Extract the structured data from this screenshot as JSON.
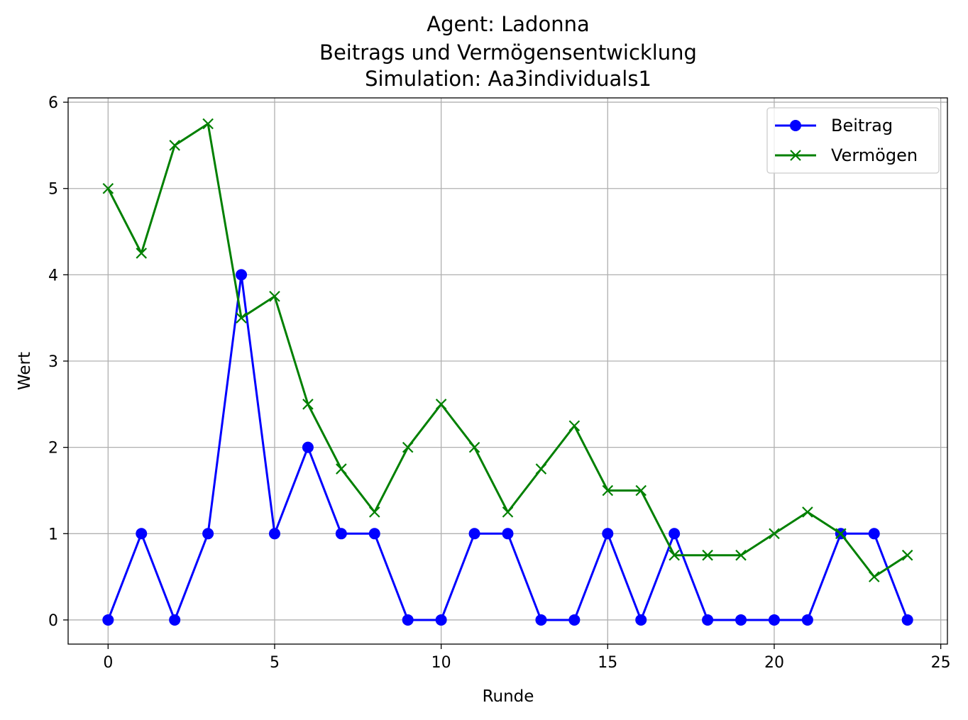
{
  "chart_data": {
    "type": "line",
    "title": "Agent: Ladonna",
    "subtitle_lines": [
      "Beitrags und Vermögensentwicklung",
      "Simulation: Aa3individuals1"
    ],
    "xlabel": "Runde",
    "ylabel": "Wert",
    "xlim": [
      -1.2,
      25.2
    ],
    "ylim": [
      -0.28,
      6.05
    ],
    "xticks": [
      0,
      5,
      10,
      15,
      20,
      25
    ],
    "yticks": [
      0,
      1,
      2,
      3,
      4,
      5,
      6
    ],
    "grid": true,
    "legend_position": "top-right",
    "x": [
      0,
      1,
      2,
      3,
      4,
      5,
      6,
      7,
      8,
      9,
      10,
      11,
      12,
      13,
      14,
      15,
      16,
      17,
      18,
      19,
      20,
      21,
      22,
      23,
      24
    ],
    "series": [
      {
        "name": "Beitrag",
        "color": "#0000ff",
        "marker": "circle",
        "values": [
          0,
          1,
          0,
          1,
          4,
          1,
          2,
          1,
          1,
          0,
          0,
          1,
          1,
          0,
          0,
          1,
          0,
          1,
          0,
          0,
          0,
          0,
          1,
          1,
          0
        ]
      },
      {
        "name": "Vermögen",
        "color": "#008000",
        "marker": "x",
        "values": [
          5,
          4.25,
          5.5,
          5.75,
          3.5,
          3.75,
          2.5,
          1.75,
          1.25,
          2,
          2.5,
          2,
          1.25,
          1.75,
          2.25,
          1.5,
          1.5,
          0.75,
          0.75,
          0.75,
          1,
          1.25,
          1,
          0.5,
          0.75
        ]
      }
    ]
  }
}
